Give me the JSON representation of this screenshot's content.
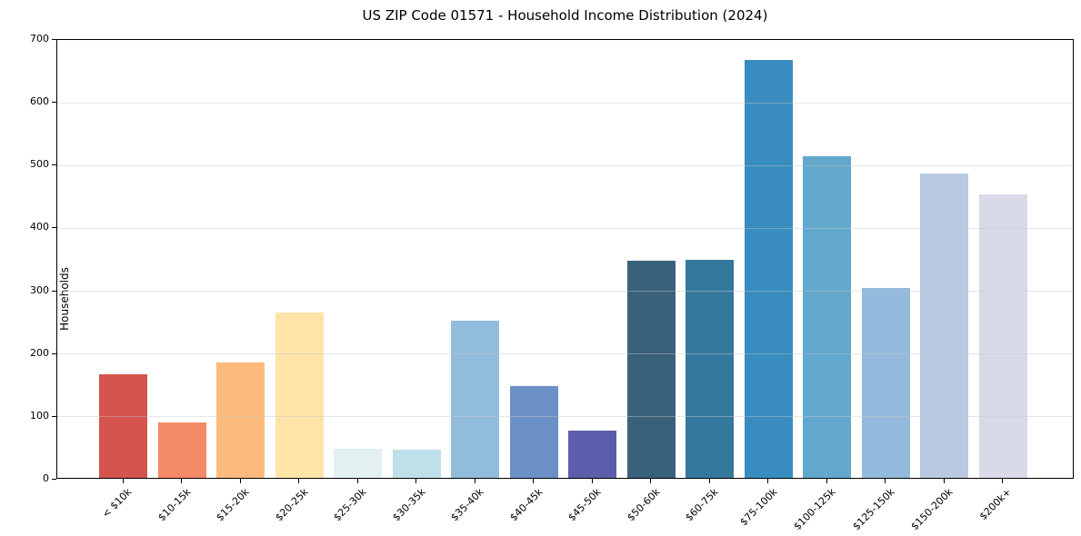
{
  "title": "US ZIP Code 01571 - Household Income Distribution (2024)",
  "chart_data": {
    "type": "bar",
    "title": "US ZIP Code 01571 - Household Income Distribution (2024)",
    "xlabel": "",
    "ylabel": "Households",
    "ylim": [
      0,
      700
    ],
    "yticks": [
      0,
      100,
      200,
      300,
      400,
      500,
      600,
      700
    ],
    "grid": "horizontal",
    "legend": "none",
    "categories": [
      "< $10k",
      "$10-15k",
      "$15-20k",
      "$20-25k",
      "$25-30k",
      "$30-35k",
      "$35-40k",
      "$40-45k",
      "$45-50k",
      "$50-60k",
      "$60-75k",
      "$75-100k",
      "$100-125k",
      "$125-150k",
      "$150-200k",
      "$200k+"
    ],
    "values": [
      165,
      88,
      184,
      263,
      47,
      45,
      250,
      146,
      75,
      345,
      347,
      665,
      512,
      302,
      485,
      451
    ],
    "bar_colors": [
      "#d5544d",
      "#f58a66",
      "#fcba7c",
      "#fee5a7",
      "#e2f0f2",
      "#bfe0ea",
      "#92bcdc",
      "#6b90c6",
      "#5c5dab",
      "#39617a",
      "#35789e",
      "#388cc0",
      "#61a8cc",
      "#93badc",
      "#b8c9e1",
      "#d8dae8"
    ]
  }
}
